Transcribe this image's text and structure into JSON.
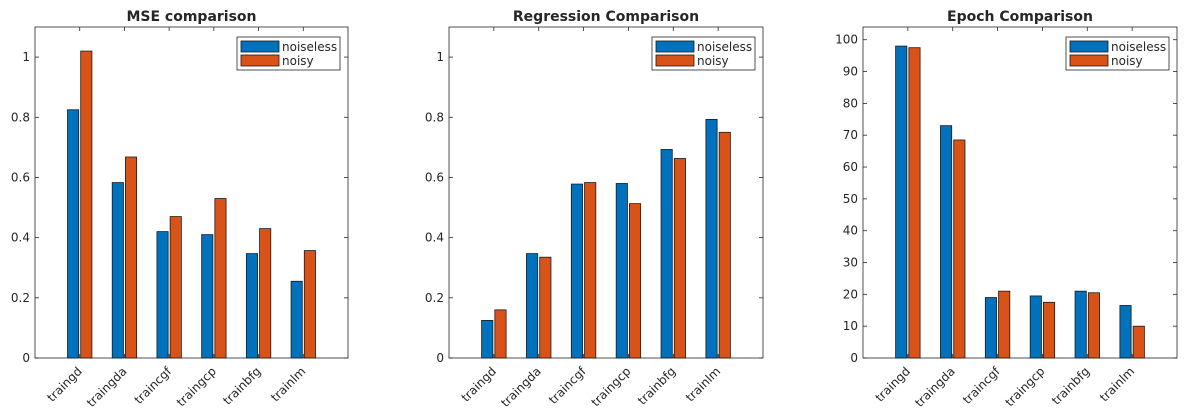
{
  "colors": {
    "noiseless": "#0072BD",
    "noisy": "#D95319",
    "axis": "#262626",
    "legend_border": "#262626"
  },
  "chart_data": [
    {
      "type": "bar",
      "title": "MSE comparison",
      "xlabel": "",
      "ylabel": "",
      "categories": [
        "traingd",
        "traingda",
        "traincgf",
        "traingcp",
        "trainbfg",
        "trainlm"
      ],
      "ylim": [
        0,
        1.1
      ],
      "yticks": [
        0,
        0.2,
        0.4,
        0.6,
        0.8,
        1
      ],
      "ytick_labels": [
        "0",
        "0.2",
        "0.4",
        "0.6",
        "0.8",
        "1"
      ],
      "legend_position": "top-right",
      "series": [
        {
          "name": "noiseless",
          "values": [
            0.825,
            0.583,
            0.42,
            0.41,
            0.347,
            0.255
          ]
        },
        {
          "name": "noisy",
          "values": [
            1.02,
            0.668,
            0.47,
            0.53,
            0.43,
            0.357
          ]
        }
      ]
    },
    {
      "type": "bar",
      "title": "Regression Comparison",
      "xlabel": "",
      "ylabel": "",
      "categories": [
        "traingd",
        "traingda",
        "traincgf",
        "traingcp",
        "trainbfg",
        "trainlm"
      ],
      "ylim": [
        0,
        1.1
      ],
      "yticks": [
        0,
        0.2,
        0.4,
        0.6,
        0.8,
        1
      ],
      "ytick_labels": [
        "0",
        "0.2",
        "0.4",
        "0.6",
        "0.8",
        "1"
      ],
      "legend_position": "top-right",
      "series": [
        {
          "name": "noiseless",
          "values": [
            0.125,
            0.347,
            0.578,
            0.58,
            0.693,
            0.793
          ]
        },
        {
          "name": "noisy",
          "values": [
            0.16,
            0.335,
            0.583,
            0.513,
            0.663,
            0.75
          ]
        }
      ]
    },
    {
      "type": "bar",
      "title": "Epoch Comparison",
      "xlabel": "",
      "ylabel": "",
      "categories": [
        "traingd",
        "traingda",
        "traincgf",
        "traingcp",
        "trainbfg",
        "trainlm"
      ],
      "ylim": [
        0,
        104
      ],
      "yticks": [
        0,
        10,
        20,
        30,
        40,
        50,
        60,
        70,
        80,
        90,
        100
      ],
      "ytick_labels": [
        "0",
        "10",
        "20",
        "30",
        "40",
        "50",
        "60",
        "70",
        "80",
        "90",
        "100"
      ],
      "legend_position": "top-right",
      "series": [
        {
          "name": "noiseless",
          "values": [
            98,
            73,
            19,
            19.5,
            21,
            16.5
          ]
        },
        {
          "name": "noisy",
          "values": [
            97.5,
            68.5,
            21,
            17.5,
            20.5,
            10
          ]
        }
      ]
    }
  ]
}
